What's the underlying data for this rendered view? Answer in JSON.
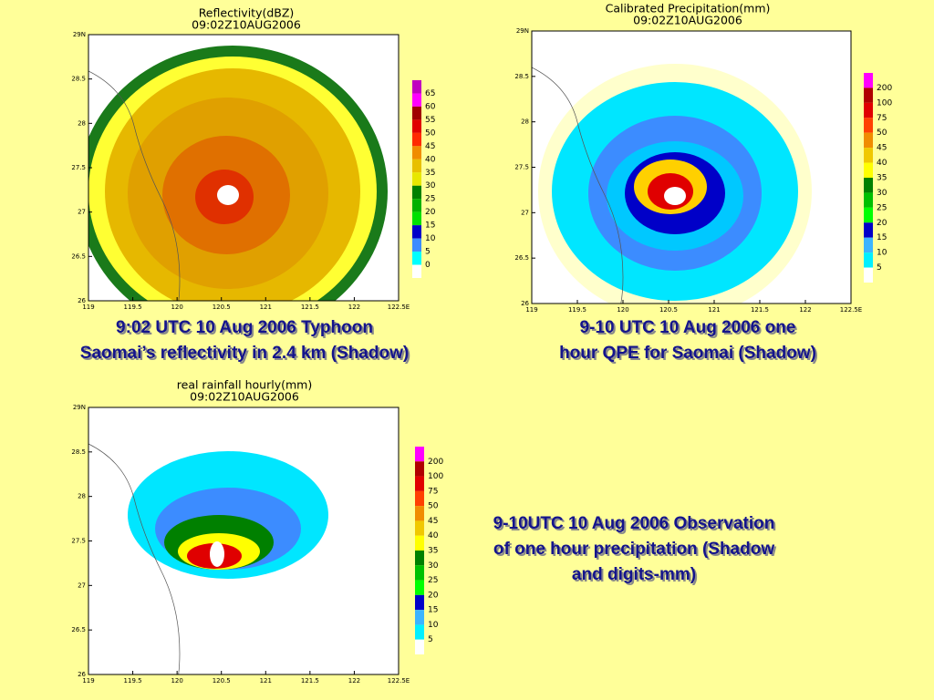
{
  "panels": [
    {
      "title": "Reflectivity(dBZ)",
      "time": "09:02Z10AUG2006",
      "yticks": [
        "29N",
        "28.5",
        "28",
        "27.5",
        "27",
        "26.5",
        "26"
      ],
      "xticks": [
        "119",
        "119.5",
        "120",
        "120.5",
        "121",
        "121.5",
        "122",
        "122.5E"
      ],
      "colorbar": [
        "65",
        "60",
        "55",
        "50",
        "45",
        "40",
        "35",
        "30",
        "25",
        "20",
        "15",
        "10",
        "5",
        "0"
      ],
      "caption": [
        "9:02 UTC 10 Aug 2006 Typhoon",
        "Saomai’s reflectivity in 2.4 km (Shadow)"
      ]
    },
    {
      "title": "Calibrated Precipitation(mm)",
      "time": "09:02Z10AUG2006",
      "yticks": [
        "29N",
        "28.5",
        "28",
        "27.5",
        "27",
        "26.5",
        "26"
      ],
      "xticks": [
        "119",
        "119.5",
        "120",
        "120.5",
        "121",
        "121.5",
        "122",
        "122.5E"
      ],
      "colorbar": [
        "200",
        "100",
        "75",
        "50",
        "45",
        "40",
        "35",
        "30",
        "25",
        "20",
        "15",
        "10",
        "5"
      ],
      "caption": [
        "9-10 UTC 10 Aug 2006 one",
        "hour QPE for Saomai (Shadow)"
      ]
    },
    {
      "title": "real rainfall hourly(mm)",
      "time": "09:02Z10AUG2006",
      "yticks": [
        "29N",
        "28.5",
        "28",
        "27.5",
        "27",
        "26.5",
        "26"
      ],
      "xticks": [
        "119",
        "119.5",
        "120",
        "120.5",
        "121",
        "121.5",
        "122",
        "122.5E"
      ],
      "colorbar": [
        "200",
        "100",
        "75",
        "50",
        "45",
        "40",
        "35",
        "30",
        "25",
        "20",
        "15",
        "10",
        "5"
      ],
      "caption": [
        "9-10UTC 10 Aug 2006 Observation",
        "of one hour precipitation (Shadow",
        "and digits-mm)"
      ]
    }
  ]
}
